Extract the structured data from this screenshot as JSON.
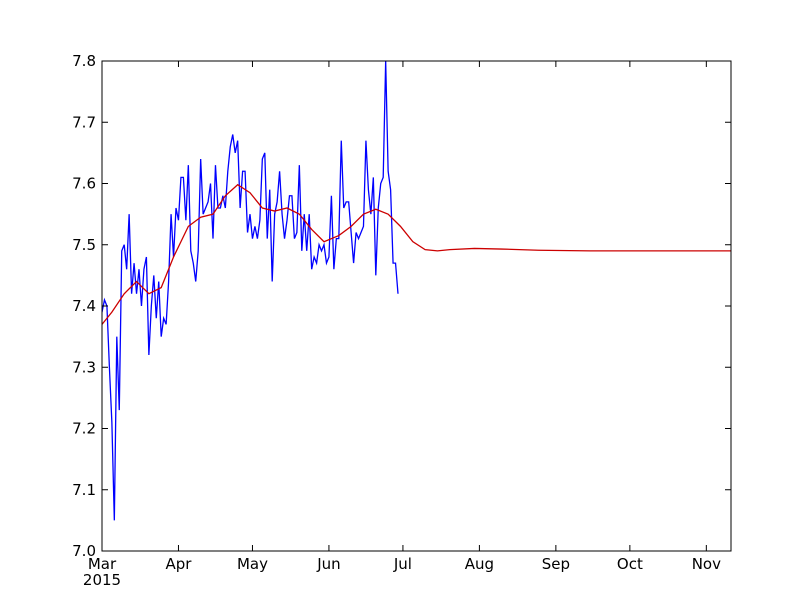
{
  "chart_data": {
    "type": "line",
    "title": "",
    "xlabel": "",
    "ylabel": "",
    "xlim": [
      "2015-03-01",
      "2015-11-11"
    ],
    "ylim": [
      7.0,
      7.8
    ],
    "grid": false,
    "legend": "none",
    "x_ticks": [
      {
        "date": "2015-03-01",
        "label": "Mar",
        "sublabel": "2015"
      },
      {
        "date": "2015-04-01",
        "label": "Apr"
      },
      {
        "date": "2015-05-01",
        "label": "May"
      },
      {
        "date": "2015-06-01",
        "label": "Jun"
      },
      {
        "date": "2015-07-01",
        "label": "Jul"
      },
      {
        "date": "2015-08-01",
        "label": "Aug"
      },
      {
        "date": "2015-09-01",
        "label": "Sep"
      },
      {
        "date": "2015-10-01",
        "label": "Oct"
      },
      {
        "date": "2015-11-01",
        "label": "Nov"
      }
    ],
    "y_ticks": [
      {
        "value": 7.0,
        "label": "7.0"
      },
      {
        "value": 7.1,
        "label": "7.1"
      },
      {
        "value": 7.2,
        "label": "7.2"
      },
      {
        "value": 7.3,
        "label": "7.3"
      },
      {
        "value": 7.4,
        "label": "7.4"
      },
      {
        "value": 7.5,
        "label": "7.5"
      },
      {
        "value": 7.6,
        "label": "7.6"
      },
      {
        "value": 7.7,
        "label": "7.7"
      },
      {
        "value": 7.8,
        "label": "7.8"
      }
    ],
    "series": [
      {
        "color": "#0000ff",
        "points": [
          [
            "2015-03-01",
            7.39
          ],
          [
            "2015-03-02",
            7.41
          ],
          [
            "2015-03-03",
            7.4
          ],
          [
            "2015-03-04",
            7.3
          ],
          [
            "2015-03-05",
            7.21
          ],
          [
            "2015-03-06",
            7.05
          ],
          [
            "2015-03-07",
            7.35
          ],
          [
            "2015-03-08",
            7.23
          ],
          [
            "2015-03-09",
            7.49
          ],
          [
            "2015-03-10",
            7.5
          ],
          [
            "2015-03-11",
            7.46
          ],
          [
            "2015-03-12",
            7.55
          ],
          [
            "2015-03-13",
            7.42
          ],
          [
            "2015-03-14",
            7.47
          ],
          [
            "2015-03-15",
            7.42
          ],
          [
            "2015-03-16",
            7.46
          ],
          [
            "2015-03-17",
            7.4
          ],
          [
            "2015-03-18",
            7.46
          ],
          [
            "2015-03-19",
            7.48
          ],
          [
            "2015-03-20",
            7.32
          ],
          [
            "2015-03-21",
            7.4
          ],
          [
            "2015-03-22",
            7.45
          ],
          [
            "2015-03-23",
            7.38
          ],
          [
            "2015-03-24",
            7.44
          ],
          [
            "2015-03-25",
            7.35
          ],
          [
            "2015-03-26",
            7.38
          ],
          [
            "2015-03-27",
            7.37
          ],
          [
            "2015-03-28",
            7.44
          ],
          [
            "2015-03-29",
            7.55
          ],
          [
            "2015-03-30",
            7.48
          ],
          [
            "2015-03-31",
            7.56
          ],
          [
            "2015-04-01",
            7.54
          ],
          [
            "2015-04-02",
            7.61
          ],
          [
            "2015-04-03",
            7.61
          ],
          [
            "2015-04-04",
            7.54
          ],
          [
            "2015-04-05",
            7.63
          ],
          [
            "2015-04-06",
            7.49
          ],
          [
            "2015-04-07",
            7.47
          ],
          [
            "2015-04-08",
            7.44
          ],
          [
            "2015-04-09",
            7.49
          ],
          [
            "2015-04-10",
            7.64
          ],
          [
            "2015-04-11",
            7.55
          ],
          [
            "2015-04-12",
            7.56
          ],
          [
            "2015-04-13",
            7.57
          ],
          [
            "2015-04-14",
            7.6
          ],
          [
            "2015-04-15",
            7.51
          ],
          [
            "2015-04-16",
            7.63
          ],
          [
            "2015-04-17",
            7.56
          ],
          [
            "2015-04-18",
            7.56
          ],
          [
            "2015-04-19",
            7.58
          ],
          [
            "2015-04-20",
            7.56
          ],
          [
            "2015-04-21",
            7.62
          ],
          [
            "2015-04-22",
            7.66
          ],
          [
            "2015-04-23",
            7.68
          ],
          [
            "2015-04-24",
            7.65
          ],
          [
            "2015-04-25",
            7.67
          ],
          [
            "2015-04-26",
            7.56
          ],
          [
            "2015-04-27",
            7.62
          ],
          [
            "2015-04-28",
            7.62
          ],
          [
            "2015-04-29",
            7.52
          ],
          [
            "2015-04-30",
            7.55
          ],
          [
            "2015-05-01",
            7.51
          ],
          [
            "2015-05-02",
            7.53
          ],
          [
            "2015-05-03",
            7.51
          ],
          [
            "2015-05-04",
            7.54
          ],
          [
            "2015-05-05",
            7.64
          ],
          [
            "2015-05-06",
            7.65
          ],
          [
            "2015-05-07",
            7.51
          ],
          [
            "2015-05-08",
            7.59
          ],
          [
            "2015-05-09",
            7.44
          ],
          [
            "2015-05-10",
            7.55
          ],
          [
            "2015-05-11",
            7.57
          ],
          [
            "2015-05-12",
            7.62
          ],
          [
            "2015-05-13",
            7.55
          ],
          [
            "2015-05-14",
            7.51
          ],
          [
            "2015-05-15",
            7.54
          ],
          [
            "2015-05-16",
            7.58
          ],
          [
            "2015-05-17",
            7.58
          ],
          [
            "2015-05-18",
            7.51
          ],
          [
            "2015-05-19",
            7.52
          ],
          [
            "2015-05-20",
            7.63
          ],
          [
            "2015-05-21",
            7.49
          ],
          [
            "2015-05-22",
            7.55
          ],
          [
            "2015-05-23",
            7.49
          ],
          [
            "2015-05-24",
            7.55
          ],
          [
            "2015-05-25",
            7.46
          ],
          [
            "2015-05-26",
            7.48
          ],
          [
            "2015-05-27",
            7.47
          ],
          [
            "2015-05-28",
            7.5
          ],
          [
            "2015-05-29",
            7.49
          ],
          [
            "2015-05-30",
            7.5
          ],
          [
            "2015-05-31",
            7.47
          ],
          [
            "2015-06-01",
            7.48
          ],
          [
            "2015-06-02",
            7.58
          ],
          [
            "2015-06-03",
            7.46
          ],
          [
            "2015-06-04",
            7.51
          ],
          [
            "2015-06-05",
            7.51
          ],
          [
            "2015-06-06",
            7.67
          ],
          [
            "2015-06-07",
            7.56
          ],
          [
            "2015-06-08",
            7.57
          ],
          [
            "2015-06-09",
            7.57
          ],
          [
            "2015-06-10",
            7.52
          ],
          [
            "2015-06-11",
            7.47
          ],
          [
            "2015-06-12",
            7.52
          ],
          [
            "2015-06-13",
            7.51
          ],
          [
            "2015-06-14",
            7.52
          ],
          [
            "2015-06-15",
            7.53
          ],
          [
            "2015-06-16",
            7.67
          ],
          [
            "2015-06-17",
            7.59
          ],
          [
            "2015-06-18",
            7.55
          ],
          [
            "2015-06-19",
            7.61
          ],
          [
            "2015-06-20",
            7.45
          ],
          [
            "2015-06-21",
            7.56
          ],
          [
            "2015-06-22",
            7.6
          ],
          [
            "2015-06-23",
            7.61
          ],
          [
            "2015-06-24",
            7.8
          ],
          [
            "2015-06-25",
            7.62
          ],
          [
            "2015-06-26",
            7.59
          ],
          [
            "2015-06-27",
            7.47
          ],
          [
            "2015-06-28",
            7.47
          ],
          [
            "2015-06-29",
            7.42
          ]
        ]
      },
      {
        "color": "#cc0000",
        "points": [
          [
            "2015-03-01",
            7.37
          ],
          [
            "2015-03-05",
            7.39
          ],
          [
            "2015-03-10",
            7.42
          ],
          [
            "2015-03-15",
            7.44
          ],
          [
            "2015-03-20",
            7.42
          ],
          [
            "2015-03-25",
            7.43
          ],
          [
            "2015-03-30",
            7.48
          ],
          [
            "2015-04-05",
            7.53
          ],
          [
            "2015-04-10",
            7.545
          ],
          [
            "2015-04-15",
            7.55
          ],
          [
            "2015-04-20",
            7.58
          ],
          [
            "2015-04-25",
            7.598
          ],
          [
            "2015-04-30",
            7.585
          ],
          [
            "2015-05-05",
            7.56
          ],
          [
            "2015-05-10",
            7.555
          ],
          [
            "2015-05-15",
            7.56
          ],
          [
            "2015-05-20",
            7.55
          ],
          [
            "2015-05-25",
            7.525
          ],
          [
            "2015-05-30",
            7.505
          ],
          [
            "2015-06-05",
            7.515
          ],
          [
            "2015-06-10",
            7.53
          ],
          [
            "2015-06-15",
            7.55
          ],
          [
            "2015-06-20",
            7.558
          ],
          [
            "2015-06-25",
            7.55
          ],
          [
            "2015-06-30",
            7.53
          ],
          [
            "2015-07-05",
            7.505
          ],
          [
            "2015-07-10",
            7.492
          ],
          [
            "2015-07-15",
            7.49
          ],
          [
            "2015-07-20",
            7.492
          ],
          [
            "2015-07-30",
            7.494
          ],
          [
            "2015-08-10",
            7.493
          ],
          [
            "2015-08-25",
            7.491
          ],
          [
            "2015-09-15",
            7.49
          ],
          [
            "2015-10-15",
            7.49
          ],
          [
            "2015-11-11",
            7.49
          ]
        ]
      }
    ]
  }
}
